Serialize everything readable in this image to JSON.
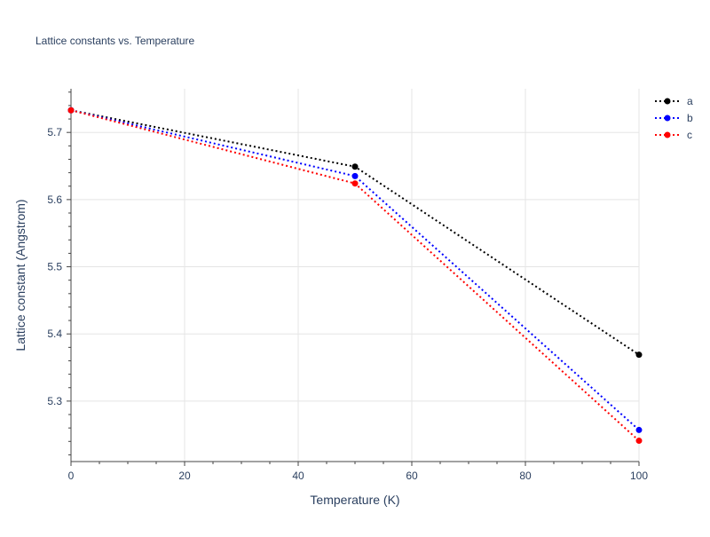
{
  "chart_data": {
    "type": "line",
    "title": "Lattice constants vs. Temperature",
    "xlabel": "Temperature (K)",
    "ylabel": "Lattice constant (Angstrom)",
    "x": [
      0,
      50,
      100
    ],
    "xlim": [
      0,
      100
    ],
    "ylim": [
      5.21,
      5.765
    ],
    "xticks": [
      0,
      20,
      40,
      60,
      80,
      100
    ],
    "yticks": [
      5.3,
      5.4,
      5.5,
      5.6,
      5.7
    ],
    "grid": true,
    "legend_position": "top-right",
    "line_style": "dotted",
    "markers": true,
    "series": [
      {
        "name": "a",
        "color": "#000000",
        "values": [
          5.733,
          5.649,
          5.369
        ]
      },
      {
        "name": "b",
        "color": "#0000ff",
        "values": [
          5.733,
          5.635,
          5.257
        ]
      },
      {
        "name": "c",
        "color": "#ff0000",
        "values": [
          5.733,
          5.624,
          5.241
        ]
      }
    ]
  }
}
